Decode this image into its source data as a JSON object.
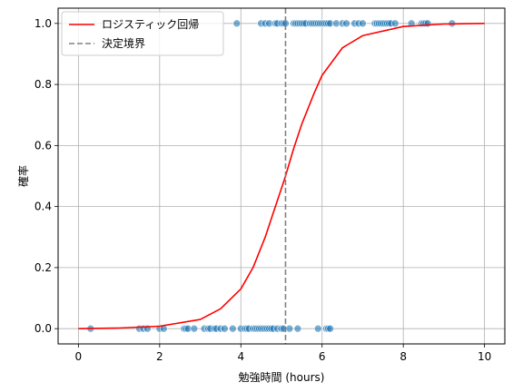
{
  "chart_data": {
    "type": "scatter",
    "xlabel": "勉強時間 (hours)",
    "ylabel": "確率",
    "xlim": [
      -0.5,
      10.5
    ],
    "ylim": [
      -0.05,
      1.05
    ],
    "xticks": [
      0,
      2,
      4,
      6,
      8,
      10
    ],
    "yticks": [
      0.0,
      0.2,
      0.4,
      0.6,
      0.8,
      1.0
    ],
    "xtick_labels": [
      "0",
      "2",
      "4",
      "6",
      "8",
      "10"
    ],
    "ytick_labels": [
      "0.0",
      "0.2",
      "0.4",
      "0.6",
      "0.8",
      "1.0"
    ],
    "grid": true,
    "legend_position": "top-left",
    "decision_boundary": 5.1,
    "logistic": {
      "x": [
        0,
        1,
        2,
        3,
        3.5,
        4,
        4.3,
        4.6,
        4.8,
        5.0,
        5.1,
        5.3,
        5.5,
        5.8,
        6.0,
        6.5,
        7.0,
        8.0,
        9.0,
        10.0
      ],
      "y": [
        0.0,
        0.002,
        0.008,
        0.03,
        0.065,
        0.13,
        0.2,
        0.3,
        0.38,
        0.46,
        0.5,
        0.59,
        0.67,
        0.77,
        0.83,
        0.92,
        0.96,
        0.99,
        0.998,
        1.0
      ],
      "color": "#ff0000"
    },
    "scatter_points": {
      "color": "#1f77b4",
      "x_label1": [
        3.9,
        4.5,
        4.6,
        4.7,
        4.85,
        4.9,
        5.0,
        5.05,
        5.1,
        5.3,
        5.35,
        5.4,
        5.45,
        5.5,
        5.55,
        5.6,
        5.7,
        5.75,
        5.8,
        5.85,
        5.9,
        5.95,
        6.0,
        6.05,
        6.1,
        6.15,
        6.2,
        6.35,
        6.5,
        6.6,
        6.8,
        6.9,
        7.0,
        7.3,
        7.35,
        7.4,
        7.45,
        7.5,
        7.55,
        7.6,
        7.65,
        7.7,
        7.8,
        8.2,
        8.45,
        8.5,
        8.55,
        8.6,
        9.2
      ],
      "x_label0": [
        0.3,
        1.5,
        1.6,
        1.7,
        2.0,
        2.1,
        2.6,
        2.65,
        2.7,
        2.85,
        3.1,
        3.2,
        3.25,
        3.35,
        3.4,
        3.5,
        3.6,
        3.8,
        4.0,
        4.1,
        4.15,
        4.2,
        4.3,
        4.35,
        4.4,
        4.45,
        4.5,
        4.55,
        4.6,
        4.65,
        4.7,
        4.75,
        4.8,
        4.9,
        5.0,
        5.05,
        5.2,
        5.4,
        5.9,
        6.1,
        6.15,
        6.2
      ]
    },
    "series": [
      {
        "name": "ロジスティック回帰",
        "color": "#ff0000",
        "style": "solid"
      },
      {
        "name": "決定境界",
        "color": "#808080",
        "style": "dashed"
      }
    ]
  }
}
